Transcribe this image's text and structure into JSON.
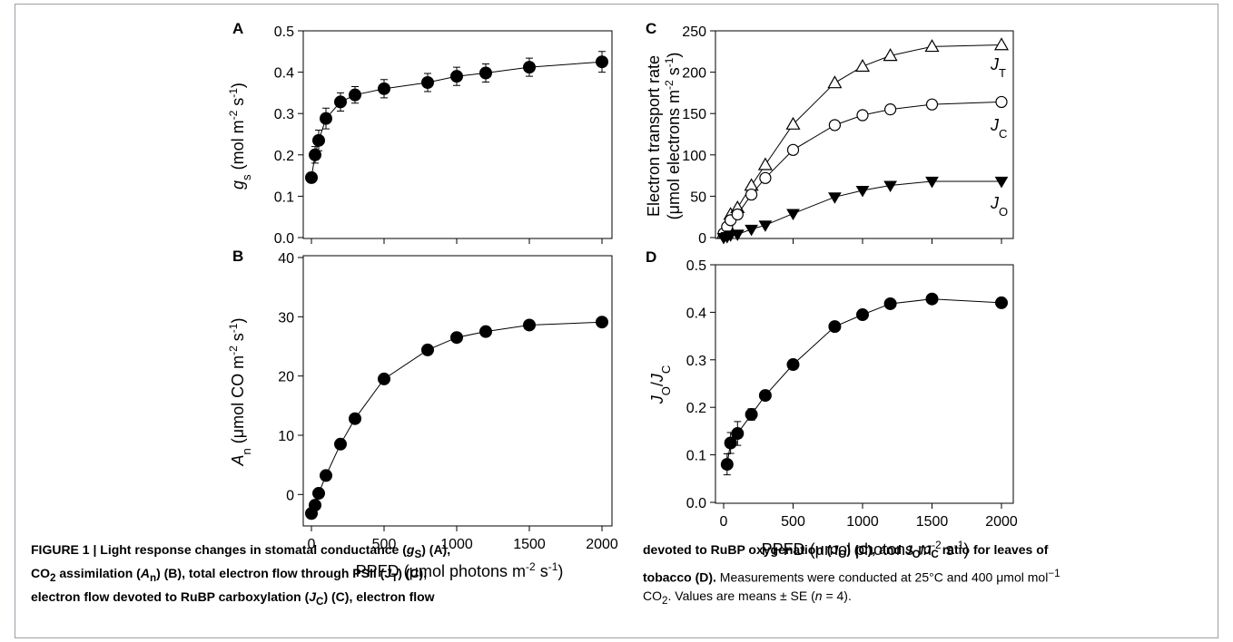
{
  "panel_letters": {
    "A": "A",
    "B": "B",
    "C": "C",
    "D": "D"
  },
  "axis_labels": {
    "A_y": {
      "main": "g",
      "sub": "s",
      "rest": " (mol m",
      "sup1": "-2",
      "mid": " s",
      "sup2": "-1",
      "end": ")"
    },
    "B_y": {
      "main": "A",
      "sub": "n",
      "rest": " (μmol CO m",
      "sup1": "-2",
      "mid": " s",
      "sup2": "-1",
      "end": ")"
    },
    "C_y1": "Electron transport rate",
    "C_y2": {
      "rest": "(μmol electrons m",
      "sup1": "-2",
      "mid": " s",
      "sup2": "-1",
      "end": ")"
    },
    "D_y": {
      "main1": "J",
      "sub1": "O",
      "slash": "/",
      "main2": "J",
      "sub2": "C"
    },
    "x_left": {
      "rest": "PPFD (μmol photons m",
      "sup1": "-2",
      "mid": " s",
      "sup2": "-1",
      "end": ")"
    },
    "x_right": {
      "rest": "PPFD (μmol photons m",
      "sup1": "-2",
      "mid": " s",
      "sup2": "-1",
      "end": ")"
    }
  },
  "series_labels": {
    "JT": {
      "main": "J",
      "sub": "T"
    },
    "JC": {
      "main": "J",
      "sub": "C"
    },
    "JO": {
      "main": "J",
      "sub": "O"
    }
  },
  "chart_data": [
    {
      "panel": "A",
      "type": "scatter",
      "xlim": [
        -50,
        2100
      ],
      "ylim": [
        0,
        0.5
      ],
      "yticks": [
        0.0,
        0.1,
        0.2,
        0.3,
        0.4,
        0.5
      ],
      "ytick_labels": [
        "0.0",
        "0.1",
        "0.2",
        "0.3",
        "0.4",
        "0.5"
      ],
      "xticks": [
        0,
        500,
        1000,
        1500,
        2000
      ],
      "xtick_labels": [],
      "series": [
        {
          "marker": "filled-circle",
          "x": [
            0,
            25,
            50,
            100,
            200,
            300,
            500,
            800,
            1000,
            1200,
            1500,
            2000
          ],
          "y": [
            0.145,
            0.2,
            0.235,
            0.288,
            0.328,
            0.345,
            0.36,
            0.375,
            0.39,
            0.398,
            0.412,
            0.425
          ],
          "err": [
            0.012,
            0.02,
            0.025,
            0.025,
            0.022,
            0.02,
            0.022,
            0.022,
            0.022,
            0.022,
            0.022,
            0.025
          ]
        }
      ]
    },
    {
      "panel": "B",
      "type": "scatter",
      "xlim": [
        -50,
        2100
      ],
      "ylim": [
        -5,
        40
      ],
      "yticks": [
        0,
        10,
        20,
        30,
        40
      ],
      "ytick_labels": [
        "0",
        "10",
        "20",
        "30",
        "40"
      ],
      "xticks": [
        0,
        500,
        1000,
        1500,
        2000
      ],
      "xtick_labels": [
        "0",
        "500",
        "1000",
        "1500",
        "2000"
      ],
      "series": [
        {
          "marker": "filled-circle",
          "x": [
            0,
            25,
            50,
            100,
            200,
            300,
            500,
            800,
            1000,
            1200,
            1500,
            2000
          ],
          "y": [
            -3.2,
            -1.8,
            0.2,
            3.2,
            8.5,
            12.8,
            19.5,
            24.4,
            26.5,
            27.5,
            28.6,
            29.1
          ],
          "err": [
            0.5,
            0.5,
            0.5,
            0.5,
            0.5,
            0.5,
            0.5,
            0.5,
            0.5,
            0.5,
            0.5,
            0.5
          ]
        }
      ]
    },
    {
      "panel": "C",
      "type": "scatter",
      "xlim": [
        -50,
        2100
      ],
      "ylim": [
        0,
        250
      ],
      "yticks": [
        0,
        50,
        100,
        150,
        200,
        250
      ],
      "ytick_labels": [
        "0",
        "50",
        "100",
        "150",
        "200",
        "250"
      ],
      "xticks": [
        0,
        500,
        1000,
        1500,
        2000
      ],
      "xtick_labels": [],
      "series": [
        {
          "name": "JT",
          "marker": "open-triangle-up",
          "x": [
            0,
            25,
            50,
            100,
            200,
            300,
            500,
            800,
            1000,
            1200,
            1500,
            2000
          ],
          "y": [
            5,
            15,
            28,
            36,
            63,
            88,
            137,
            187,
            207,
            220,
            231,
            233
          ]
        },
        {
          "name": "JC",
          "marker": "open-circle",
          "x": [
            0,
            25,
            50,
            100,
            200,
            300,
            500,
            800,
            1000,
            1200,
            1500,
            2000
          ],
          "y": [
            5,
            13,
            21,
            28,
            52,
            72,
            106,
            136,
            148,
            155,
            161,
            164
          ]
        },
        {
          "name": "JO",
          "marker": "filled-triangle-down",
          "x": [
            0,
            25,
            50,
            100,
            200,
            300,
            500,
            800,
            1000,
            1200,
            1500,
            2000
          ],
          "y": [
            0,
            1,
            3,
            4,
            10,
            15,
            29,
            49,
            57,
            63,
            68,
            68
          ]
        }
      ]
    },
    {
      "panel": "D",
      "type": "scatter",
      "xlim": [
        -50,
        2100
      ],
      "ylim": [
        0,
        0.5
      ],
      "yticks": [
        0.0,
        0.1,
        0.2,
        0.3,
        0.4,
        0.5
      ],
      "ytick_labels": [
        "0.0",
        "0.1",
        "0.2",
        "0.3",
        "0.4",
        "0.5"
      ],
      "xticks": [
        0,
        500,
        1000,
        1500,
        2000
      ],
      "xtick_labels": [
        "0",
        "500",
        "1000",
        "1500",
        "2000"
      ],
      "series": [
        {
          "marker": "filled-circle",
          "x": [
            25,
            50,
            100,
            200,
            300,
            500,
            800,
            1000,
            1200,
            1500,
            2000
          ],
          "y": [
            0.08,
            0.125,
            0.145,
            0.185,
            0.225,
            0.29,
            0.37,
            0.395,
            0.418,
            0.428,
            0.42
          ],
          "err": [
            0.022,
            0.022,
            0.025,
            0.012,
            0.01,
            0.008,
            0.008,
            0.008,
            0.008,
            0.008,
            0.008
          ]
        }
      ]
    }
  ],
  "caption": {
    "fig_label": "FIGURE 1 | ",
    "t1": "Light response changes in stomatal conductance (",
    "gs_main": "g",
    "gs_sub": "S",
    "t2": ") (A),",
    "t3": "CO",
    "co2_sub": "2",
    "t4": " assimilation (",
    "an_main": "A",
    "an_sub": "n",
    "t5": ") (B), total electron flow through PSII (",
    "jt_main": "J",
    "jt_sub": "T",
    "t6": ") (C),",
    "t7": "electron flow devoted to RuBP carboxylation (",
    "jc_main": "J",
    "jc_sub": "C",
    "t8": ") (C), electron flow",
    "r1": "devoted to RuBP oxygenation (",
    "jo_main": "J",
    "jo_sub": "O",
    "r2": ") (C), and ",
    "jo2_main": "J",
    "jo2_sub": "O",
    "r3": "/",
    "jc2_main": "J",
    "jc2_sub": "C",
    "r4": " ratio for leaves of",
    "r5": "tobacco (D).",
    "r6": " Measurements were conducted at 25°C and 400 μmol mol",
    "r6_sup": "−1",
    "r7": "CO",
    "r7_sub": "2",
    "r8": ". Values are means ± SE (",
    "r8_n": "n",
    "r9": " = 4)."
  }
}
